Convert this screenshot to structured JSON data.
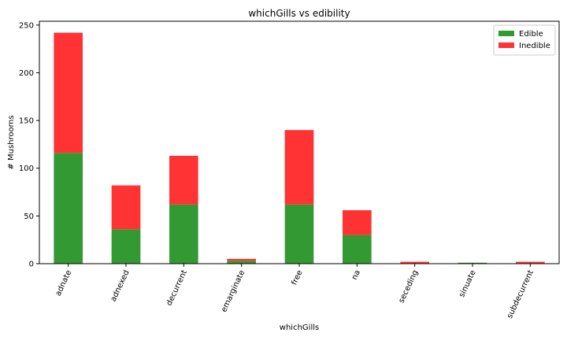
{
  "chart_data": {
    "type": "bar",
    "stacked": true,
    "title": "whichGills vs edibility",
    "xlabel": "whichGills",
    "ylabel": "# Mushrooms",
    "categories": [
      "adnate",
      "adnexed",
      "decurrent",
      "emarginate",
      "free",
      "na",
      "seceding",
      "sinuate",
      "subdecurrent"
    ],
    "series": [
      {
        "name": "Edible",
        "color": "#339933",
        "values": [
          116,
          36,
          62,
          3,
          62,
          30,
          0,
          1,
          0
        ]
      },
      {
        "name": "Inedible",
        "color": "#ff3333",
        "values": [
          126,
          46,
          51,
          2,
          78,
          26,
          2,
          0,
          2
        ]
      }
    ],
    "ylim": [
      0,
      254
    ],
    "yticks": [
      0,
      50,
      100,
      150,
      200,
      250
    ],
    "grid": false,
    "legend_position": "top-right",
    "x_tick_rotation": -65
  }
}
